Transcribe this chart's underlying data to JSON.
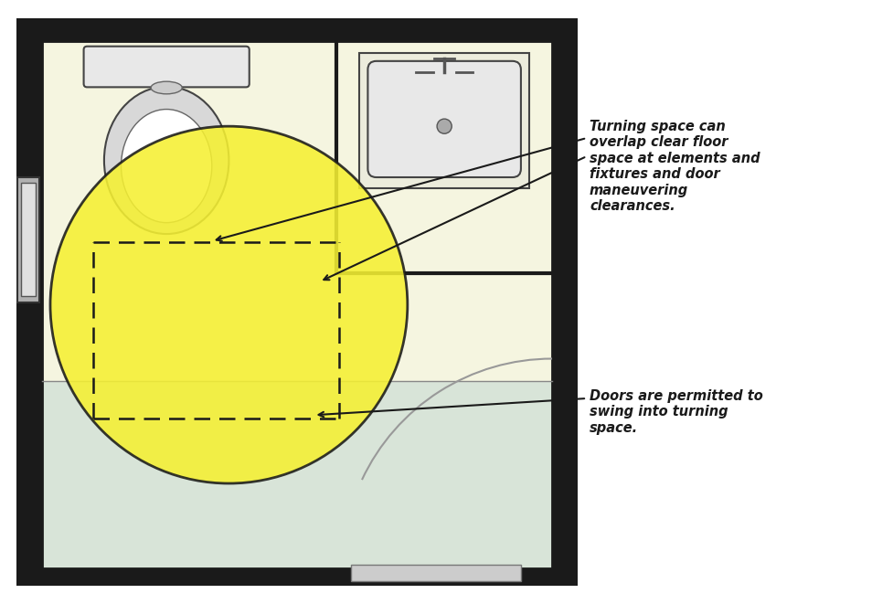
{
  "fig_width": 9.77,
  "fig_height": 6.61,
  "dpi": 100,
  "bg_color": "#ffffff",
  "room_bg_cream": "#f5f5e0",
  "room_bg_gray": "#d8e4d8",
  "wall_dark": "#1a1a1a",
  "wall_mid": "#555555",
  "fixture_fill": "#e8e8e8",
  "fixture_edge": "#444444",
  "yellow_fill": "#f5f032",
  "yellow_edge": "#1a1a1a",
  "annotation1": "Turning space can\noverlap clear floor\nspace at elements and\nfixtures and door\nmaneuvering\nclearances.",
  "annotation2": "Doors are permitted to\nswing into turning\nspace.",
  "ann_fontsize": 10.5
}
